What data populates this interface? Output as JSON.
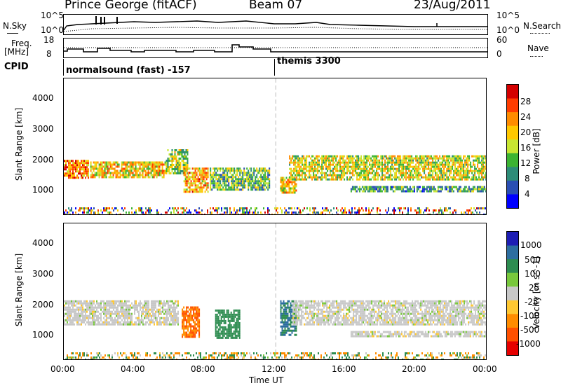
{
  "header": {
    "station": "Prince George (fitACF)",
    "beam": "Beam 07",
    "date": "23/Aug/2011"
  },
  "nsky_panel": {
    "left_label": "N.Sky",
    "right_label": "N.Search",
    "left_ticks": [
      "10^5",
      "10^0"
    ],
    "right_ticks": [
      "10^5",
      "10^0"
    ]
  },
  "freq_panel": {
    "left_label_1": "Freq.",
    "left_label_2": "[MHz]",
    "right_label": "Nave",
    "left_ticks": [
      "18",
      "8"
    ],
    "right_ticks": [
      "60",
      "0"
    ]
  },
  "cpid": {
    "label": "CPID",
    "program_1": "normalsound (fast) -157",
    "program_2": "themis 3300"
  },
  "power_colorbar": {
    "label": "Power [dB]",
    "ticks": [
      "28",
      "24",
      "20",
      "16",
      "12",
      "8",
      "4"
    ],
    "colors": [
      "#d40000",
      "#ff3c00",
      "#ff8c00",
      "#ffc800",
      "#c8e632",
      "#3cb432",
      "#2d8c78",
      "#2a4fb4",
      "#0000ff"
    ]
  },
  "velocity_colorbar": {
    "label": "Velocity [m s^-1]",
    "ticks": [
      "1000",
      "500",
      "100",
      "25",
      "-25",
      "-100",
      "-500",
      "-1000"
    ],
    "colors": [
      "#1e1eb4",
      "#2d6ea0",
      "#2d8c50",
      "#78c83c",
      "#c8c8c8",
      "#ffc832",
      "#ff8c00",
      "#ff5000",
      "#e60000"
    ]
  },
  "x_axis": {
    "label": "Time UT",
    "ticks": [
      "00:00",
      "04:00",
      "08:00",
      "12:00",
      "16:00",
      "20:00",
      "00:00"
    ]
  },
  "chart_data": [
    {
      "type": "heatmap",
      "title": "Power",
      "xlabel": "Time UT",
      "ylabel": "Slant Range [km]",
      "xlim": [
        0,
        24
      ],
      "ylim": [
        180,
        4600
      ],
      "y_ticks": [
        "1000",
        "2000",
        "3000",
        "4000"
      ],
      "colorbar_range": [
        0,
        30
      ],
      "grid": false,
      "regions": [
        {
          "t": [
            0,
            1.4
          ],
          "range": [
            1350,
            1950
          ],
          "value": 22
        },
        {
          "t": [
            1.5,
            5.8
          ],
          "range": [
            1400,
            1900
          ],
          "value": 18
        },
        {
          "t": [
            5.8,
            7
          ],
          "range": [
            1500,
            2300
          ],
          "value": 14
        },
        {
          "t": [
            6.8,
            8.2
          ],
          "range": [
            900,
            1700
          ],
          "value": 20
        },
        {
          "t": [
            8.3,
            11.7
          ],
          "range": [
            1000,
            1700
          ],
          "value": 12
        },
        {
          "t": [
            12.3,
            13.2
          ],
          "range": [
            900,
            1400
          ],
          "value": 18
        },
        {
          "t": [
            12.8,
            24
          ],
          "range": [
            1300,
            2100
          ],
          "value": 16
        },
        {
          "t": [
            16.3,
            24
          ],
          "range": [
            900,
            1100
          ],
          "value": 10
        }
      ]
    },
    {
      "type": "heatmap",
      "title": "Velocity",
      "xlabel": "Time UT",
      "ylabel": "Slant Range [km]",
      "xlim": [
        0,
        24
      ],
      "ylim": [
        180,
        4600
      ],
      "y_ticks": [
        "1000",
        "2000",
        "3000",
        "4000"
      ],
      "colorbar_range": [
        -1000,
        1000
      ],
      "grid": false,
      "regions": [
        {
          "t": [
            0,
            6.5
          ],
          "range": [
            1300,
            2100
          ],
          "value": 0
        },
        {
          "t": [
            6.7,
            7.7
          ],
          "range": [
            900,
            1900
          ],
          "value": -300
        },
        {
          "t": [
            8.6,
            10
          ],
          "range": [
            900,
            1800
          ],
          "value": 150
        },
        {
          "t": [
            12.3,
            13.2
          ],
          "range": [
            1000,
            2100
          ],
          "value": 300
        },
        {
          "t": [
            13,
            24
          ],
          "range": [
            1300,
            2100
          ],
          "value": 0
        },
        {
          "t": [
            16.3,
            24
          ],
          "range": [
            900,
            1100
          ],
          "value": 0
        }
      ]
    }
  ]
}
